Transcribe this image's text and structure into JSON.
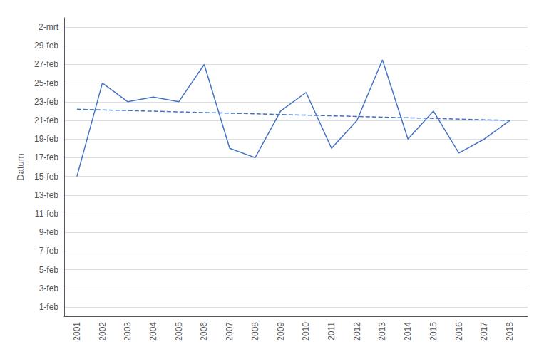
{
  "chart_data": {
    "type": "line",
    "ylabel": "Datum",
    "x": [
      2001,
      2002,
      2003,
      2004,
      2005,
      2006,
      2007,
      2008,
      2009,
      2010,
      2011,
      2012,
      2013,
      2014,
      2015,
      2016,
      2017,
      2018
    ],
    "series": [
      {
        "type": "line",
        "color": "#4472C4",
        "line_style": "solid",
        "values": [
          15,
          25,
          23,
          23.5,
          23,
          27,
          18,
          17,
          22,
          24,
          18,
          21,
          27.5,
          19,
          22,
          17.5,
          19,
          21
        ]
      },
      {
        "type": "line",
        "color": "#4472C4",
        "line_style": "dashed",
        "x": [
          2001,
          2018
        ],
        "values": [
          22.2,
          21.0
        ]
      }
    ],
    "xlim": [
      2000.5,
      2018.7
    ],
    "xticks": [
      2001,
      2002,
      2003,
      2004,
      2005,
      2006,
      2007,
      2008,
      2009,
      2010,
      2011,
      2012,
      2013,
      2014,
      2015,
      2016,
      2017,
      2018
    ],
    "ylim": [
      0,
      32
    ],
    "yticks": [
      {
        "value": 1,
        "label": "1-feb"
      },
      {
        "value": 3,
        "label": "3-feb"
      },
      {
        "value": 5,
        "label": "5-feb"
      },
      {
        "value": 7,
        "label": "7-feb"
      },
      {
        "value": 9,
        "label": "9-feb"
      },
      {
        "value": 11,
        "label": "11-feb"
      },
      {
        "value": 13,
        "label": "13-feb"
      },
      {
        "value": 15,
        "label": "15-feb"
      },
      {
        "value": 17,
        "label": "17-feb"
      },
      {
        "value": 19,
        "label": "19-feb"
      },
      {
        "value": 21,
        "label": "21-feb"
      },
      {
        "value": 23,
        "label": "23-feb"
      },
      {
        "value": 25,
        "label": "25-feb"
      },
      {
        "value": 27,
        "label": "27-feb"
      },
      {
        "value": 29,
        "label": "29-feb"
      },
      {
        "value": 31,
        "label": "2-mrt"
      }
    ],
    "grid": true
  }
}
